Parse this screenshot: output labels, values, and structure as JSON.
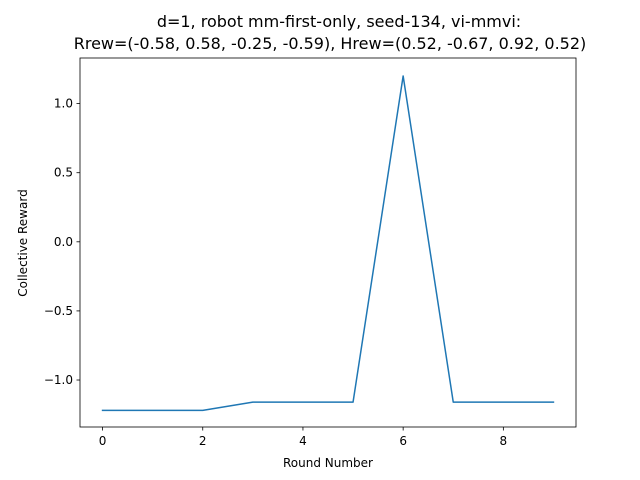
{
  "chart_data": {
    "type": "line",
    "title_line1": "d=1, robot mm-first-only, seed-134, vi-mmvi:",
    "title_line2": "Rrew=(-0.58, 0.58, -0.25, -0.59), Hrew=(0.52, -0.67, 0.92, 0.52)",
    "xlabel": "Round Number",
    "ylabel": "Collective Reward",
    "x": [
      0,
      1,
      2,
      3,
      4,
      5,
      6,
      7,
      8,
      9
    ],
    "series": [
      {
        "values": [
          -1.22,
          -1.22,
          -1.22,
          -1.16,
          -1.16,
          -1.16,
          1.2,
          -1.16,
          -1.16,
          -1.16
        ],
        "color": "#1f77b4"
      }
    ],
    "xlim": [
      -0.45,
      9.45
    ],
    "ylim": [
      -1.34,
      1.33
    ],
    "xticks": [
      0,
      2,
      4,
      6,
      8
    ],
    "xtick_labels": [
      "0",
      "2",
      "4",
      "6",
      "8"
    ],
    "yticks": [
      -1.0,
      -0.5,
      0.0,
      0.5,
      1.0
    ],
    "ytick_labels": [
      "−1.0",
      "−0.5",
      "0.0",
      "0.5",
      "1.0"
    ],
    "grid": false,
    "legend": false
  }
}
